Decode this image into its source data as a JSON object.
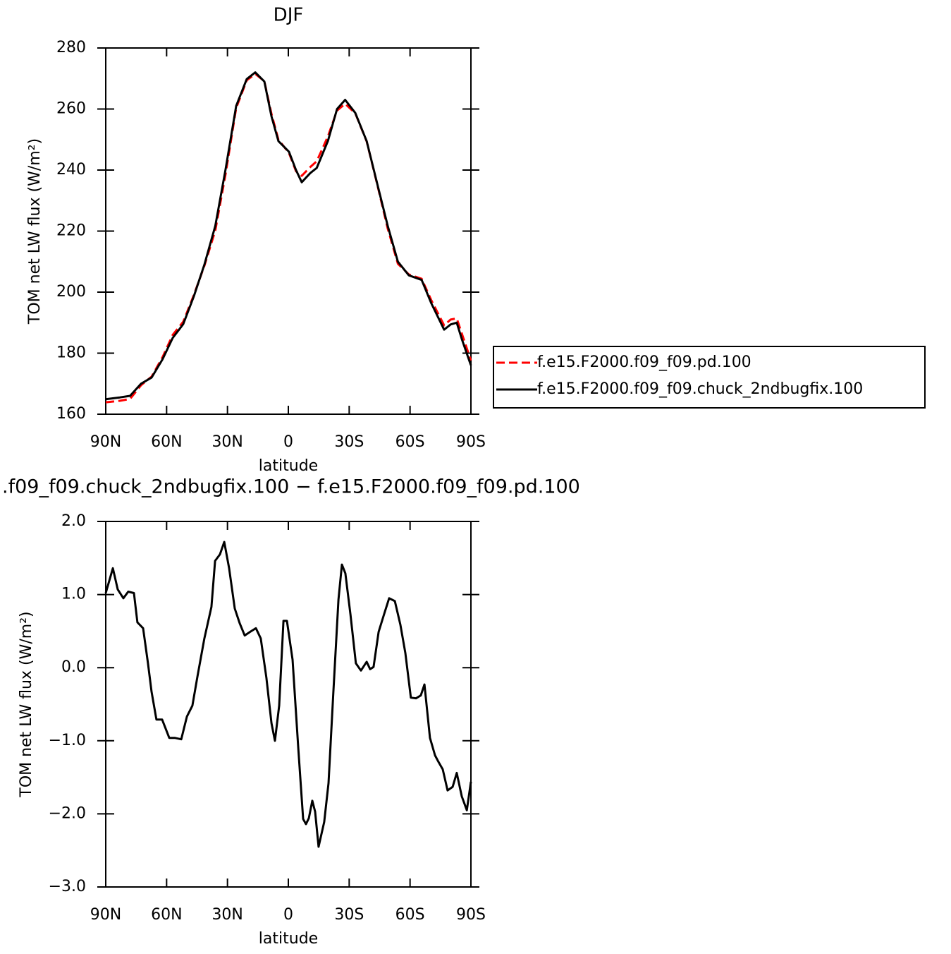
{
  "chart_data": [
    {
      "type": "line",
      "title": "DJF",
      "xlabel": "latitude",
      "ylabel": "TOM net LW flux (W/m²)",
      "x": [
        90,
        83,
        78,
        72.6,
        67.4,
        62,
        57,
        51.8,
        46.6,
        41.4,
        36,
        31,
        25.7,
        20.5,
        16.3,
        11.8,
        8.3,
        4.9,
        -0.3,
        -3.8,
        -6.6,
        -10.8,
        -14,
        -19.5,
        -24,
        -28,
        -33,
        -38.6,
        -43.8,
        -49,
        -54,
        -59.4,
        -65.7,
        -70.5,
        -76.8,
        -80,
        -83,
        -85.5,
        -90
      ],
      "series": [
        {
          "name": "f.e15.F2000.f09_f09.pd.100",
          "color": "#ff0000",
          "line_style": "dashed",
          "values": [
            163.9,
            164.4,
            165,
            169.5,
            172.3,
            178.7,
            186,
            190.3,
            199,
            208.6,
            220.2,
            238.4,
            260.3,
            269.4,
            271.5,
            269.1,
            258.4,
            250,
            245.6,
            239.6,
            238.1,
            241,
            242.9,
            251,
            259.5,
            261.7,
            258.6,
            249.4,
            235.4,
            220.8,
            209.3,
            205.8,
            204.4,
            197.3,
            189.1,
            191,
            191.4,
            186.5,
            177.6
          ]
        },
        {
          "name": "f.e15.F2000.f09_f09.chuck_2ndbugfix.100",
          "color": "#000000",
          "line_style": "solid",
          "values": [
            164.9,
            165.5,
            166,
            170,
            172,
            178,
            185,
            189.5,
            198.6,
            209,
            221.7,
            240,
            261,
            269.8,
            272,
            269,
            257.6,
            249.5,
            246,
            240,
            236,
            239,
            240.7,
            249.5,
            260,
            263,
            258.7,
            249.5,
            235.6,
            221.7,
            210,
            205.5,
            204,
            196.3,
            187.7,
            189.4,
            190,
            184.7,
            176
          ]
        }
      ],
      "xlim": [
        90,
        -90
      ],
      "xticks": [
        {
          "value": 90,
          "label": "90N"
        },
        {
          "value": 60,
          "label": "60N"
        },
        {
          "value": 30,
          "label": "30N"
        },
        0,
        {
          "value": -30,
          "label": "30S"
        },
        {
          "value": -60,
          "label": "60S"
        },
        {
          "value": -90,
          "label": "90S"
        }
      ],
      "ylim": [
        160,
        280
      ],
      "yticks": [
        160,
        180,
        200,
        220,
        240,
        260,
        280
      ],
      "legend": "right"
    },
    {
      "type": "line",
      "title": ".f09_f09.chuck_2ndbugfix.100 − f.e15.F2000.f09_f09.pd.100",
      "xlabel": "latitude",
      "ylabel": "TOM net LW flux (W/m²)",
      "x": [
        90,
        86.5,
        84.1,
        81.3,
        78.9,
        76.1,
        74.4,
        71.6,
        69.2,
        67.4,
        65,
        62.2,
        58.7,
        56,
        52.8,
        50,
        47.3,
        44.8,
        41.4,
        37.9,
        36.1,
        33.7,
        31.6,
        29.2,
        26.4,
        24,
        21.5,
        18.8,
        16,
        13.6,
        10.8,
        8.3,
        6.6,
        4.5,
        2.4,
        0.7,
        -2.1,
        -4.9,
        -7.3,
        -8.7,
        -10.1,
        -11.8,
        -13.2,
        -14.9,
        -17.7,
        -19.8,
        -22.2,
        -24.7,
        -26.4,
        -28.1,
        -30.6,
        -33.3,
        -35.8,
        -38.6,
        -40.3,
        -42,
        -44.5,
        -47.2,
        -49.7,
        -52.5,
        -55.2,
        -57.7,
        -60.4,
        -62.9,
        -65.3,
        -67.1,
        -69.8,
        -72.3,
        -74,
        -76.1,
        -78.5,
        -81,
        -83,
        -85.5,
        -88,
        -90
      ],
      "values": [
        1.02,
        1.36,
        1.07,
        0.95,
        1.04,
        1.02,
        0.62,
        0.54,
        0.06,
        -0.33,
        -0.71,
        -0.71,
        -0.96,
        -0.96,
        -0.98,
        -0.67,
        -0.52,
        -0.12,
        0.4,
        0.83,
        1.46,
        1.55,
        1.72,
        1.36,
        0.81,
        0.61,
        0.44,
        0.49,
        0.54,
        0.4,
        -0.14,
        -0.76,
        -1.0,
        -0.52,
        0.64,
        0.64,
        0.11,
        -1.1,
        -2.07,
        -2.14,
        -2.06,
        -1.82,
        -1.97,
        -2.45,
        -2.11,
        -1.58,
        -0.33,
        0.93,
        1.41,
        1.29,
        0.73,
        0.06,
        -0.04,
        0.08,
        -0.02,
        0.01,
        0.49,
        0.73,
        0.95,
        0.91,
        0.59,
        0.2,
        -0.41,
        -0.42,
        -0.38,
        -0.23,
        -0.96,
        -1.2,
        -1.29,
        -1.39,
        -1.68,
        -1.63,
        -1.44,
        -1.76,
        -1.95,
        -1.56
      ],
      "color": "#000000",
      "xlim": [
        90,
        -90
      ],
      "xticks": [
        {
          "value": 90,
          "label": "90N"
        },
        {
          "value": 60,
          "label": "60N"
        },
        {
          "value": 30,
          "label": "30N"
        },
        0,
        {
          "value": -30,
          "label": "30S"
        },
        {
          "value": -60,
          "label": "60S"
        },
        {
          "value": -90,
          "label": "90S"
        }
      ],
      "ylim": [
        -3,
        2
      ],
      "yticks": [
        {
          "value": -3,
          "label": "−3.0"
        },
        {
          "value": -2,
          "label": "−2.0"
        },
        {
          "value": -1,
          "label": "−1.0"
        },
        {
          "value": 0,
          "label": "0.0"
        },
        {
          "value": 1,
          "label": "1.0"
        },
        {
          "value": 2,
          "label": "2.0"
        }
      ]
    }
  ]
}
